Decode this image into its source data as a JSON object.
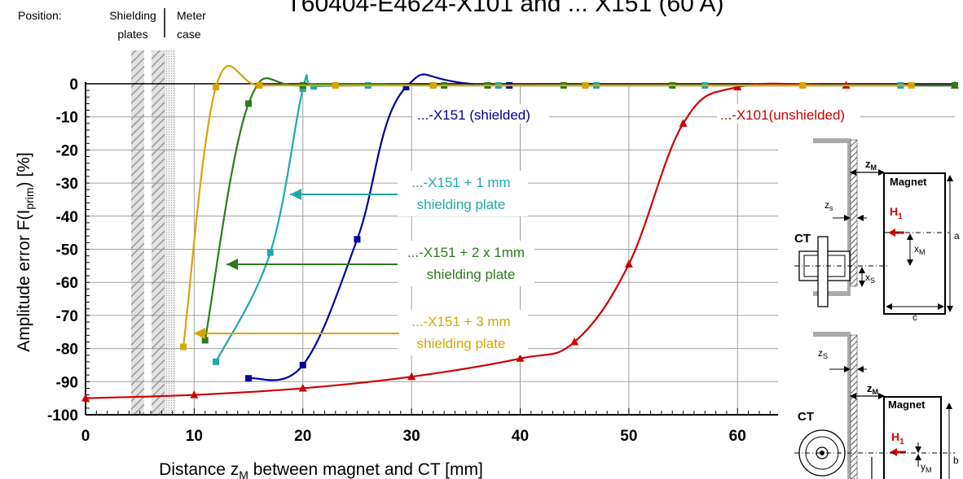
{
  "chart_data": {
    "type": "line",
    "title": "T60404-E4624-X101 and ... X151 (60 A)",
    "xlabel": "Distance z",
    "xlabel_sub": "M",
    "xlabel_rest": " between magnet and CT [mm]",
    "ylabel": "Amplitude error F(I",
    "ylabel_sub": "prim",
    "ylabel_rest": ") [%]",
    "xlim": [
      0,
      80
    ],
    "ylim": [
      -100,
      0
    ],
    "x_ticks": [
      0,
      10,
      20,
      30,
      40,
      50,
      60
    ],
    "y_ticks": [
      0,
      -10,
      -20,
      -30,
      -40,
      -50,
      -60,
      -70,
      -80,
      -90,
      -100
    ],
    "grid": true,
    "position_labels": {
      "position": "Position:",
      "shielding1": "Shielding",
      "shielding2": "plates",
      "meter1": "Meter",
      "meter2": "case"
    },
    "series": [
      {
        "name": "...-X101(unshielded)",
        "color": "#cc0000",
        "marker": "triangle",
        "x": [
          0,
          10,
          20,
          30,
          40,
          45,
          50,
          55,
          60,
          70,
          80
        ],
        "y": [
          -95,
          -94,
          -92,
          -88.5,
          -83,
          -78,
          -54.5,
          -12,
          -1,
          -0.5,
          -0.5
        ]
      },
      {
        "name": "...-X151 (shielded)",
        "color": "#000099",
        "marker": "square",
        "x": [
          15,
          20,
          25,
          29.5,
          39,
          80
        ],
        "y": [
          -89,
          -85,
          -47,
          -1,
          -0.5,
          -0.5
        ]
      },
      {
        "name": "...-X151 + 1 mm shielding plate",
        "color": "#20a8a8",
        "marker": "square",
        "x": [
          12,
          17,
          20,
          21,
          26,
          32,
          38,
          47,
          57,
          75
        ],
        "y": [
          -84,
          -51,
          -1.5,
          -0.8,
          -0.5,
          -0.5,
          -0.5,
          -0.5,
          -0.5,
          -0.5
        ]
      },
      {
        "name": "...-X151 + 2 x 1mm shielding plate",
        "color": "#2d7a1f",
        "marker": "square",
        "x": [
          11,
          15,
          20,
          33,
          37,
          44,
          54,
          80
        ],
        "y": [
          -77.5,
          -6,
          -0.5,
          -0.5,
          -0.5,
          -0.5,
          -0.5,
          -0.5
        ]
      },
      {
        "name": "...-X151 + 3 mm shielding plate",
        "color": "#d9a400",
        "marker": "square",
        "x": [
          9,
          12,
          16,
          23,
          32,
          46,
          66,
          76
        ],
        "y": [
          -79.5,
          -1,
          -0.5,
          -0.5,
          -0.5,
          -0.5,
          -0.5,
          -0.5
        ]
      }
    ],
    "annotations": {
      "x151": "...-X151 (shielded)",
      "x101": "...-X101(unshielded)",
      "plate1_a": "...-X151 + 1 mm",
      "plate1_b": "shielding plate",
      "plate2_a": "...-X151 + 2 x 1mm",
      "plate2_b": "shielding plate",
      "plate3_a": "...-X151 + 3 mm",
      "plate3_b": "shielding plate"
    },
    "diagram_labels": {
      "zm": "z",
      "zm_sub": "M",
      "magnet": "Magnet",
      "h1": "H",
      "h1_sub": "1",
      "zs": "z",
      "zs_sub": "s",
      "zs2_sub": "S",
      "xm": "x",
      "xm_sub": "M",
      "xs": "x",
      "xs_sub": "S",
      "ct": "CT",
      "a": "a",
      "b": "b",
      "c": "c",
      "ym": "y",
      "ym_sub": "M"
    }
  }
}
